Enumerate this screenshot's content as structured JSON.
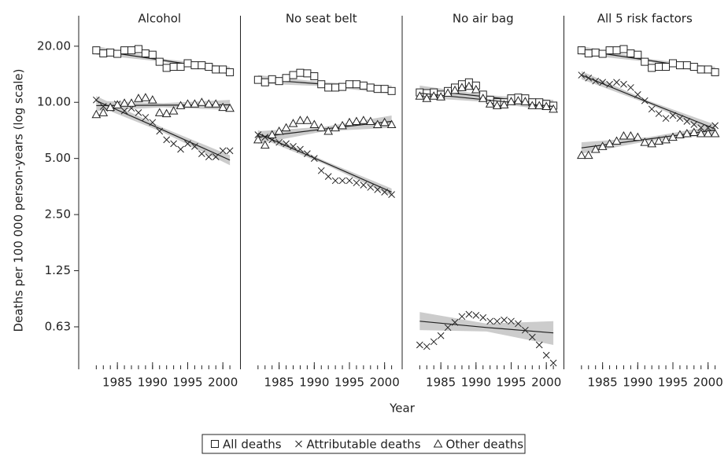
{
  "chart_data": {
    "type": "facet_scatter",
    "ylabel": "Deaths per 100 000 person-years (log scale)",
    "xlabel": "Year",
    "log_scale": true,
    "ylim": [
      0.37,
      24
    ],
    "yticks": [
      {
        "value": 20,
        "label": "20.00"
      },
      {
        "value": 10,
        "label": "10.00"
      },
      {
        "value": 5,
        "label": "5.00"
      },
      {
        "value": 2.5,
        "label": "2.50"
      },
      {
        "value": 1.25,
        "label": "1.25"
      },
      {
        "value": 0.625,
        "label": "0.63"
      }
    ],
    "xlim": [
      1979.5,
      2002.5
    ],
    "xticks": [
      1985,
      1990,
      1995,
      2000
    ],
    "minor_xticks": [
      1982,
      1983,
      1984,
      1985,
      1986,
      1987,
      1988,
      1989,
      1990,
      1991,
      1992,
      1993,
      1994,
      1995,
      1996,
      1997,
      1998,
      1999,
      2000,
      2001
    ],
    "x": [
      1982,
      1983,
      1984,
      1985,
      1986,
      1987,
      1988,
      1989,
      1990,
      1991,
      1992,
      1993,
      1994,
      1995,
      1996,
      1997,
      1998,
      1999,
      2000,
      2001
    ],
    "trend_x": [
      1982,
      1991.5,
      2001
    ],
    "color": "#222222",
    "band_color": "#cccccc",
    "panels": [
      {
        "title": "Alcohol",
        "series": [
          {
            "name": "All deaths",
            "marker": "square",
            "values": [
              19,
              18.3,
              18.5,
              18.2,
              19,
              19,
              19.3,
              18.3,
              18,
              16.5,
              15.3,
              15.5,
              15.5,
              16.2,
              15.8,
              15.8,
              15.5,
              15,
              15,
              14.5
            ],
            "trend": [
              19,
              16.8,
              14.8
            ],
            "trend_low": [
              18,
              16.5,
              14.1
            ],
            "trend_high": [
              20,
              17.1,
              15.5
            ]
          },
          {
            "name": "Attributable deaths",
            "marker": "x",
            "values": [
              10.3,
              9.5,
              9.3,
              9.8,
              9,
              9.3,
              8.8,
              8.3,
              7.8,
              7,
              6.3,
              6,
              5.6,
              6,
              5.8,
              5.3,
              5.1,
              5.1,
              5.5,
              5.5
            ],
            "trend": [
              10.2,
              7.1,
              4.9
            ],
            "trend_low": [
              9.6,
              6.9,
              4.6
            ],
            "trend_high": [
              10.8,
              7.3,
              5.2
            ]
          },
          {
            "name": "Other deaths",
            "marker": "triangle",
            "values": [
              8.6,
              8.8,
              9.4,
              9.7,
              9.9,
              9.9,
              10.5,
              10.6,
              10.3,
              8.8,
              8.7,
              9,
              9.6,
              9.8,
              9.8,
              10,
              9.8,
              9.8,
              9.4,
              9.3
            ],
            "trend": [
              9.6,
              9.65,
              9.7
            ],
            "trend_low": [
              9,
              9.4,
              9.1
            ],
            "trend_high": [
              10.2,
              9.9,
              10.3
            ]
          }
        ]
      },
      {
        "title": "No seat belt",
        "series": [
          {
            "name": "All deaths",
            "marker": "square",
            "values": [
              13.2,
              12.8,
              13.3,
              13,
              13.5,
              14,
              14.4,
              14.3,
              13.8,
              12.5,
              12,
              12,
              12.1,
              12.5,
              12.5,
              12.3,
              12,
              11.8,
              11.8,
              11.5
            ],
            "trend": [
              13.3,
              12.5,
              11.7
            ],
            "trend_low": [
              12.6,
              12.2,
              11.1
            ],
            "trend_high": [
              14,
              12.8,
              12.3
            ]
          },
          {
            "name": "Attributable deaths",
            "marker": "x",
            "values": [
              6.7,
              6.5,
              6.3,
              6.1,
              6,
              5.8,
              5.6,
              5.3,
              5,
              4.3,
              4,
              3.8,
              3.8,
              3.8,
              3.7,
              3.6,
              3.5,
              3.4,
              3.3,
              3.2
            ],
            "trend": [
              6.8,
              4.75,
              3.3
            ],
            "trend_low": [
              6.5,
              4.65,
              3.15
            ],
            "trend_high": [
              7.1,
              4.85,
              3.45
            ]
          },
          {
            "name": "Other deaths",
            "marker": "triangle",
            "values": [
              6.3,
              5.9,
              6.7,
              7,
              7.3,
              7.7,
              8,
              8,
              7.6,
              7.3,
              7,
              7.3,
              7.5,
              7.8,
              7.9,
              8,
              7.9,
              7.6,
              7.8,
              7.6
            ],
            "trend": [
              6.5,
              7.2,
              7.9
            ],
            "trend_low": [
              6,
              7,
              7.3
            ],
            "trend_high": [
              7,
              7.4,
              8.5
            ]
          }
        ]
      },
      {
        "title": "No air bag",
        "series": [
          {
            "name": "All deaths",
            "marker": "square",
            "values": [
              11.3,
              11.2,
              11.3,
              11,
              11.5,
              12,
              12.5,
              12.8,
              12.3,
              11,
              10.3,
              10,
              10,
              10.5,
              10.6,
              10.5,
              10,
              10,
              9.8,
              9.6
            ],
            "trend": [
              11.7,
              10.7,
              9.8
            ],
            "trend_low": [
              11.1,
              10.45,
              9.3
            ],
            "trend_high": [
              12.3,
              10.95,
              10.3
            ]
          },
          {
            "name": "Attributable deaths",
            "marker": "x",
            "values": [
              0.5,
              0.49,
              0.52,
              0.56,
              0.62,
              0.66,
              0.71,
              0.73,
              0.72,
              0.7,
              0.67,
              0.67,
              0.68,
              0.67,
              0.65,
              0.6,
              0.55,
              0.5,
              0.44,
              0.4
            ],
            "trend": [
              0.67,
              0.62,
              0.58
            ],
            "trend_low": [
              0.6,
              0.59,
              0.5
            ],
            "trend_high": [
              0.75,
              0.65,
              0.67
            ]
          },
          {
            "name": "Other deaths",
            "marker": "triangle",
            "values": [
              10.8,
              10.5,
              10.8,
              10.7,
              11.2,
              11.6,
              12,
              12.2,
              11.7,
              10.5,
              9.8,
              9.6,
              9.7,
              10.1,
              10.2,
              10.1,
              9.6,
              9.6,
              9.5,
              9.2
            ],
            "trend": [
              11.2,
              10.3,
              9.5
            ],
            "trend_low": [
              10.6,
              10.05,
              9
            ],
            "trend_high": [
              11.8,
              10.55,
              10
            ]
          }
        ]
      },
      {
        "title": "All 5 risk factors",
        "series": [
          {
            "name": "All deaths",
            "marker": "square",
            "values": [
              19,
              18.3,
              18.5,
              18.2,
              19,
              19,
              19.3,
              18.3,
              18,
              16.5,
              15.3,
              15.5,
              15.5,
              16.2,
              15.8,
              15.8,
              15.5,
              15,
              15,
              14.5
            ],
            "trend": [
              19,
              16.8,
              14.8
            ],
            "trend_low": [
              18,
              16.5,
              14.1
            ],
            "trend_high": [
              20,
              17.1,
              15.5
            ]
          },
          {
            "name": "Attributable deaths",
            "marker": "x",
            "values": [
              14,
              13.5,
              13,
              12.8,
              12.5,
              12.8,
              12.5,
              12,
              11,
              10.2,
              9.2,
              8.7,
              8.2,
              8.5,
              8.2,
              7.9,
              7.6,
              7.3,
              7.3,
              7.5
            ],
            "trend": [
              14,
              10,
              7.2
            ],
            "trend_low": [
              13.3,
              9.8,
              6.8
            ],
            "trend_high": [
              14.7,
              10.2,
              7.6
            ]
          },
          {
            "name": "Other deaths",
            "marker": "triangle",
            "values": [
              5.2,
              5.2,
              5.6,
              5.8,
              6,
              6.2,
              6.6,
              6.6,
              6.5,
              6.1,
              6,
              6.2,
              6.3,
              6.5,
              6.7,
              6.8,
              6.9,
              6.8,
              6.8,
              6.8
            ],
            "trend": [
              5.7,
              6.35,
              7.1
            ],
            "trend_low": [
              5.3,
              6.2,
              6.7
            ],
            "trend_high": [
              6.1,
              6.5,
              7.5
            ]
          }
        ]
      }
    ]
  }
}
